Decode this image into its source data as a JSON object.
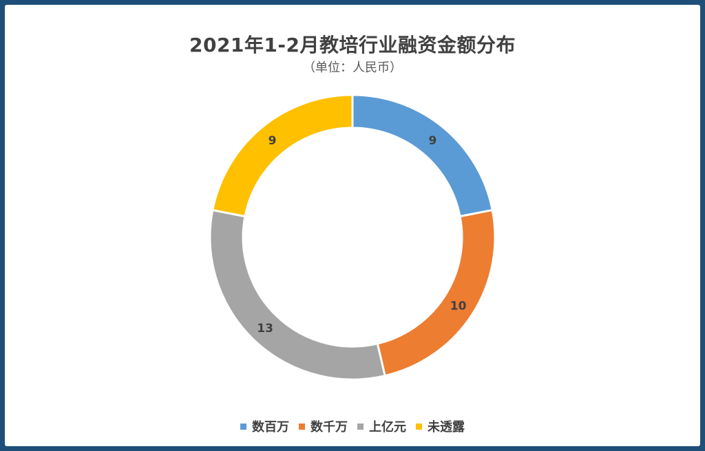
{
  "chart_data": {
    "type": "pie",
    "title": "2021年1-2月教培行业融资金额分布",
    "subtitle": "（单位：人民币）",
    "categories": [
      "数百万",
      "数千万",
      "上亿元",
      "未透露"
    ],
    "values": [
      9,
      10,
      13,
      9
    ],
    "colors": [
      "#5b9bd5",
      "#ed7d31",
      "#a5a5a5",
      "#ffc000"
    ],
    "donut": true,
    "legend_position": "bottom"
  }
}
